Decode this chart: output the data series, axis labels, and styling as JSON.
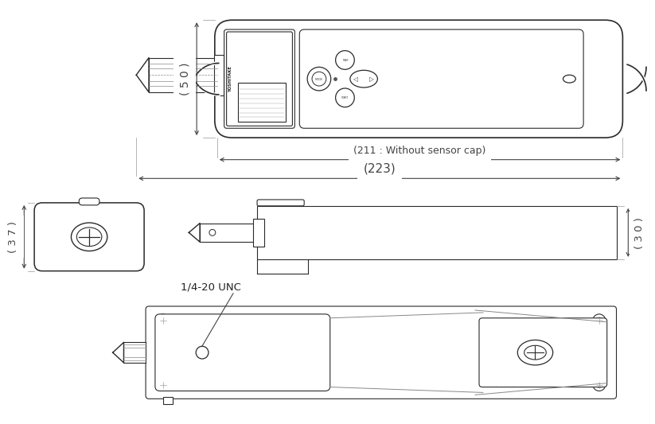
{
  "bg_color": "#ffffff",
  "line_color": "#2a2a2a",
  "dim_color": "#444444",
  "dim_50": "( 5 0 )",
  "dim_211": "(211 : Without sensor cap)",
  "dim_223": "(223)",
  "dim_37": "( 3 7 )",
  "dim_30": "( 3 0 )",
  "label_unc": "1/4-20 UNC",
  "label_yoshitake": "YOSHITAKE"
}
